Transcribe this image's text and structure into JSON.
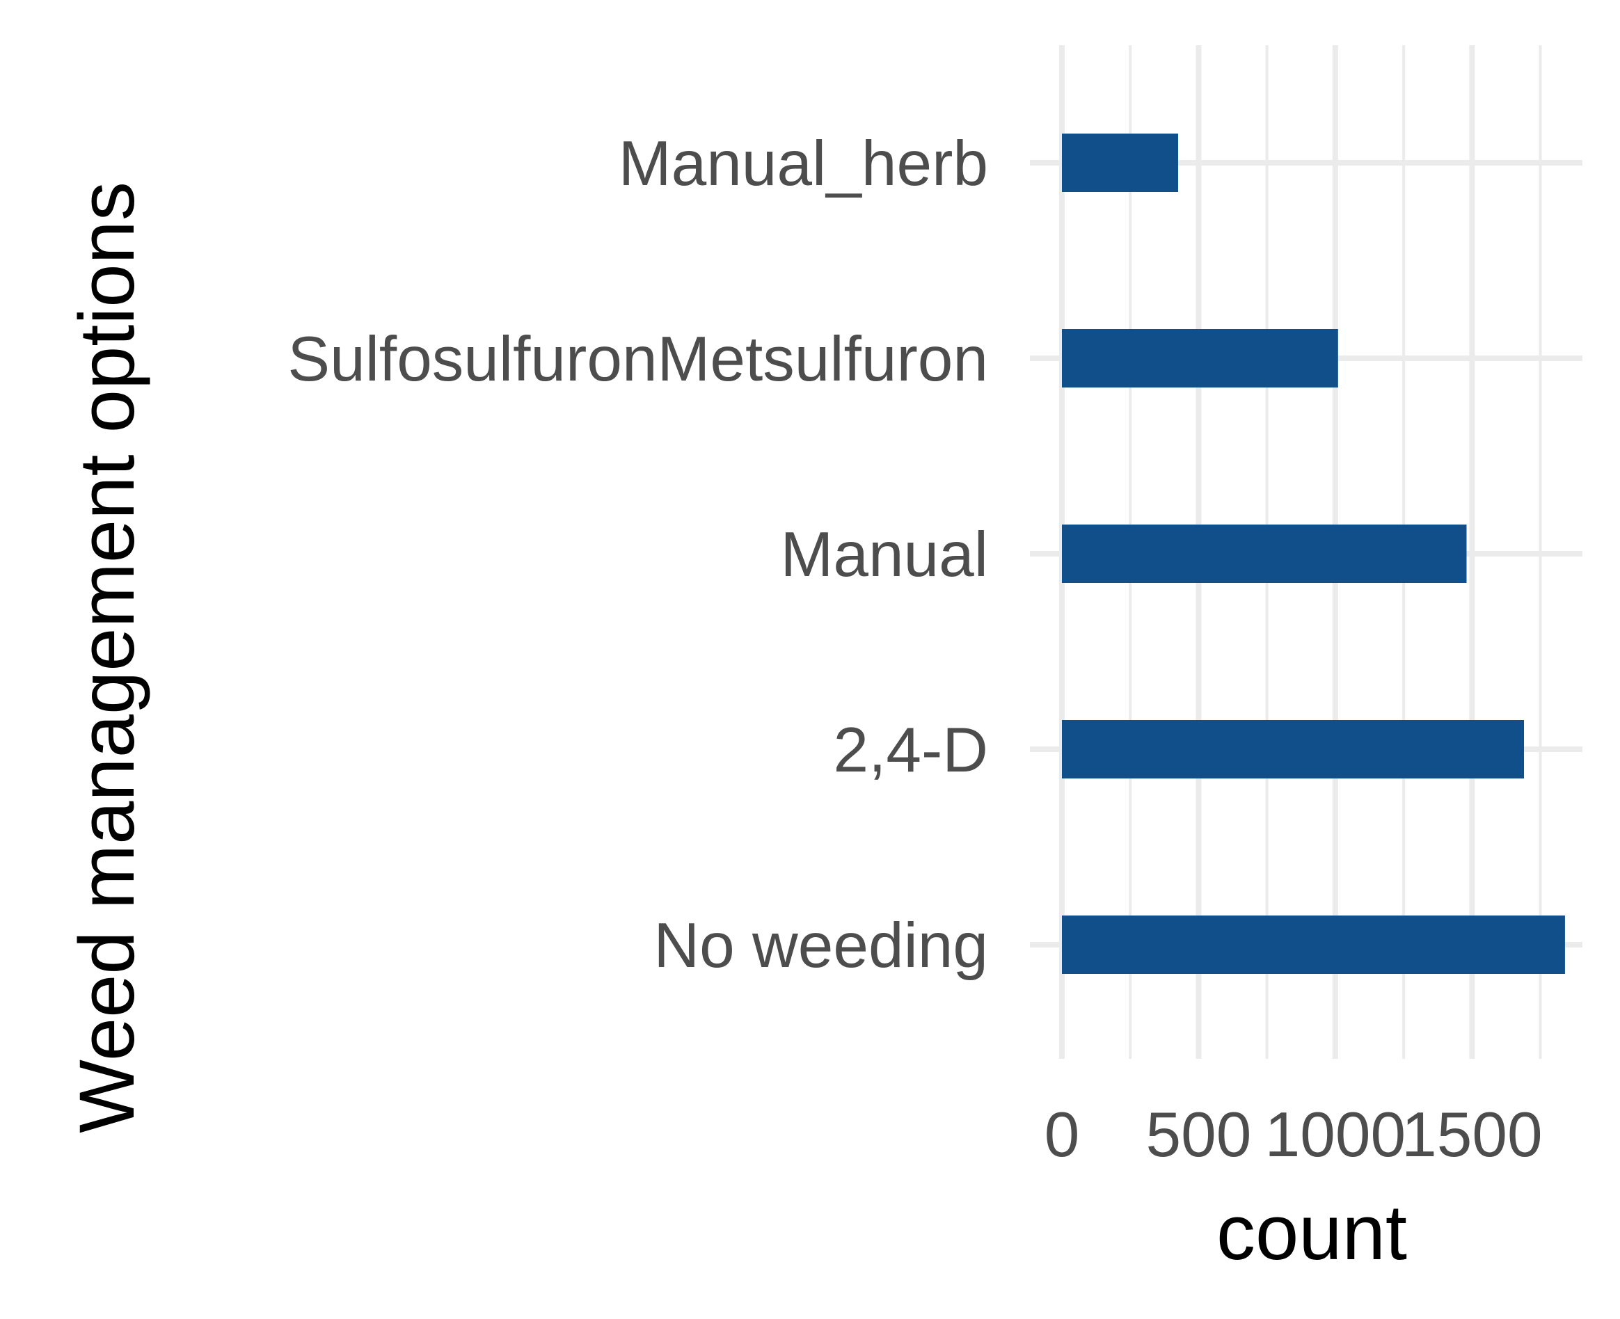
{
  "chart_data": {
    "type": "bar",
    "orientation": "horizontal",
    "categories": [
      "Manual_herb",
      "SulfosulfuronMetsulfuron",
      "Manual",
      "2,4-D",
      "No weeding"
    ],
    "values": [
      425,
      1010,
      1480,
      1690,
      1840
    ],
    "xlabel": "count",
    "ylabel": "Weed management options",
    "xticks": [
      0,
      500,
      1000,
      1500
    ],
    "tick_labels": [
      "0",
      "500",
      "1000",
      "1500"
    ],
    "xlim": [
      -40,
      1940
    ],
    "grid": true,
    "legend": "none",
    "bar_color": "#114f8a",
    "grid_color": "#ebebeb"
  }
}
